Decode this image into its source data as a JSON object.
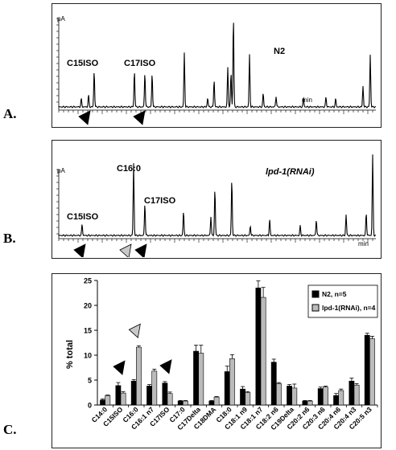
{
  "figure": {
    "panel_letters": [
      "A.",
      "B.",
      "C."
    ]
  },
  "chart_data": [
    {
      "type": "line",
      "panel": "A.",
      "y_unit_label": "pA",
      "x_unit_label": "min",
      "sample_label": "N2",
      "annotations": [
        "C15ISO",
        "C17ISO"
      ],
      "markers": [
        {
          "color": "black",
          "label_ref": "C15ISO"
        },
        {
          "color": "black",
          "label_ref": "C17ISO"
        }
      ],
      "peaks_relative_height": [
        0.09,
        0.13,
        0.4,
        0.4,
        0.38,
        0.37,
        0.6,
        0.1,
        0.3,
        0.44,
        0.38,
        1.0,
        0.58,
        0.15,
        0.12,
        0.1,
        0.11,
        0.09,
        0.23,
        0.58
      ]
    },
    {
      "type": "line",
      "panel": "B.",
      "y_unit_label": "pA",
      "x_unit_label": "min",
      "sample_label": "lpd-1(RNAi)",
      "annotations": [
        "C15ISO",
        "C16:0",
        "C17ISO"
      ],
      "markers": [
        {
          "color": "black",
          "label_ref": "C15ISO"
        },
        {
          "color": "grey",
          "label_ref": "C16:0"
        },
        {
          "color": "black",
          "label_ref": "C17ISO"
        }
      ],
      "peaks_relative_height": [
        0.14,
        0.9,
        0.4,
        0.3,
        0.24,
        0.58,
        0.7,
        0.12,
        0.2,
        0.12,
        0.2,
        0.26,
        0.28,
        1.0
      ]
    },
    {
      "type": "bar",
      "panel": "C.",
      "ylabel": "% total",
      "ylim": [
        0,
        25
      ],
      "yticks": [
        0,
        5,
        10,
        15,
        20,
        25
      ],
      "categories": [
        "C14:0",
        "C15ISO",
        "C16:0",
        "C16:1 n7",
        "C17ISO",
        "C17:0",
        "C17Delta",
        "C18DMA",
        "C18:0",
        "C18:1 n9",
        "C18:1 n7",
        "C18:2 n6",
        "C19Delta",
        "C20:2 n6",
        "C20:3 n6",
        "C20:4 n6",
        "C20:4 n3",
        "C20:5 n3"
      ],
      "series": [
        {
          "name": "N2, n=5",
          "color": "#000000",
          "values": [
            1.0,
            3.9,
            4.8,
            3.8,
            4.4,
            0.8,
            10.8,
            0.8,
            6.7,
            3.2,
            23.5,
            8.6,
            3.8,
            0.8,
            3.3,
            1.9,
            4.8,
            14.0
          ],
          "errors": [
            0.2,
            0.6,
            0.3,
            0.3,
            0.3,
            0.1,
            1.2,
            0.1,
            1.1,
            0.5,
            1.4,
            0.6,
            0.3,
            0.1,
            0.3,
            0.4,
            0.6,
            0.4
          ]
        },
        {
          "name": "lpd-1(RNAi), n=4",
          "color": "#bbbbbb",
          "values": [
            1.9,
            2.4,
            11.6,
            6.8,
            2.3,
            0.8,
            10.4,
            1.6,
            9.3,
            2.5,
            21.6,
            4.3,
            3.4,
            0.8,
            3.6,
            2.9,
            4.0,
            13.3
          ],
          "errors": [
            0.1,
            0.3,
            0.3,
            0.4,
            0.3,
            0.1,
            1.6,
            0.1,
            0.8,
            0.2,
            2.0,
            0.2,
            0.8,
            0.1,
            0.2,
            0.3,
            0.3,
            0.5
          ]
        }
      ],
      "markers": [
        {
          "color": "black",
          "category": "C15ISO"
        },
        {
          "color": "grey",
          "category": "C16:0"
        },
        {
          "color": "black",
          "category": "C17ISO"
        }
      ]
    }
  ]
}
